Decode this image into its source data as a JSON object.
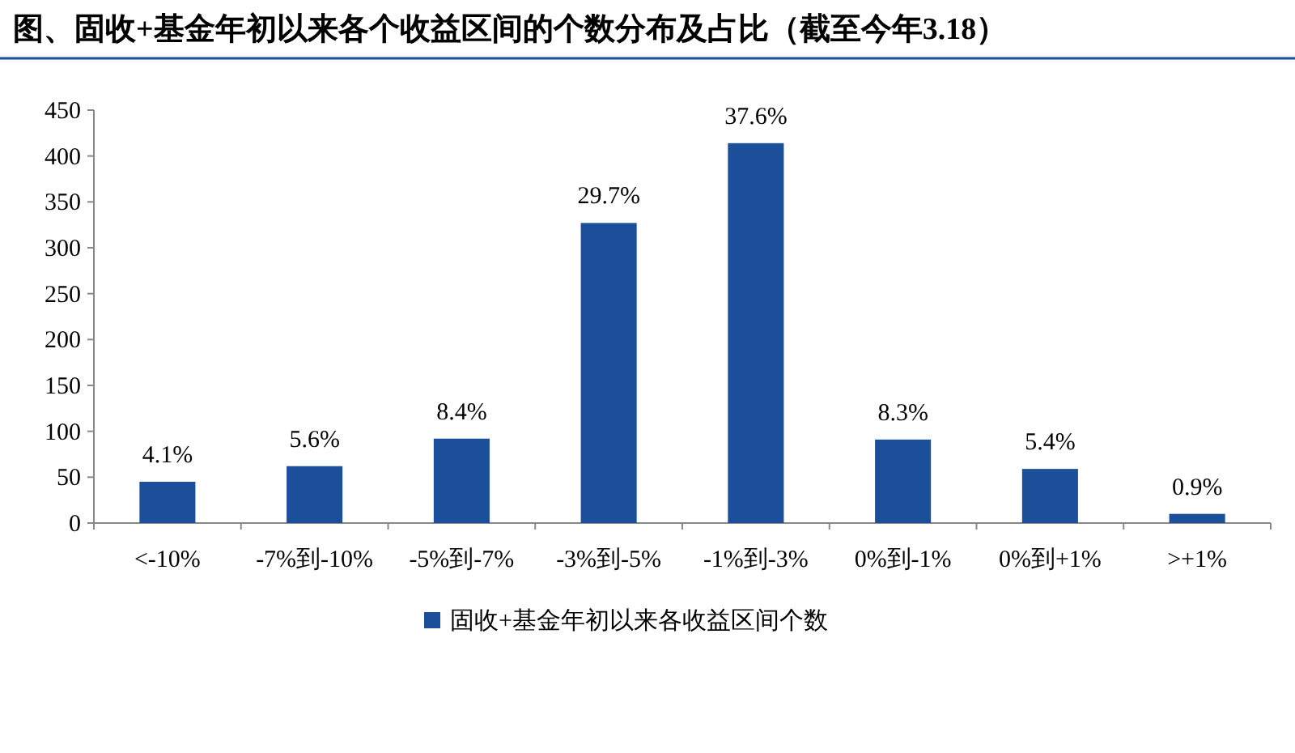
{
  "chart_data": {
    "type": "bar",
    "title": "图、固收+基金年初以来各个收益区间的个数分布及占比（截至今年3.18）",
    "categories": [
      "<-10%",
      "-7%到-10%",
      "-5%到-7%",
      "-3%到-5%",
      "-1%到-3%",
      "0%到-1%",
      "0%到+1%",
      ">+1%"
    ],
    "series": [
      {
        "name": "固收+基金年初以来各收益区间个数",
        "color": "#1b4f9a",
        "values": [
          45,
          62,
          92,
          327,
          414,
          91,
          59,
          10
        ]
      }
    ],
    "annotations": [
      {
        "text": "4.1%",
        "x": "<-10%",
        "y": 45
      },
      {
        "text": "5.6%",
        "x": "-7%到-10%",
        "y": 62
      },
      {
        "text": "8.4%",
        "x": "-5%到-7%",
        "y": 92
      },
      {
        "text": "29.7%",
        "x": "-3%到-5%",
        "y": 327
      },
      {
        "text": "37.6%",
        "x": "-1%到-3%",
        "y": 414
      },
      {
        "text": "8.3%",
        "x": "0%到-1%",
        "y": 91
      },
      {
        "text": "5.4%",
        "x": "0%到+1%",
        "y": 59
      },
      {
        "text": "0.9%",
        "x": ">+1%",
        "y": 10
      }
    ],
    "ylim": [
      0,
      450
    ],
    "yticks": [
      0,
      50,
      100,
      150,
      200,
      250,
      300,
      350,
      400,
      450
    ],
    "grid": false,
    "legend": "bottom"
  }
}
